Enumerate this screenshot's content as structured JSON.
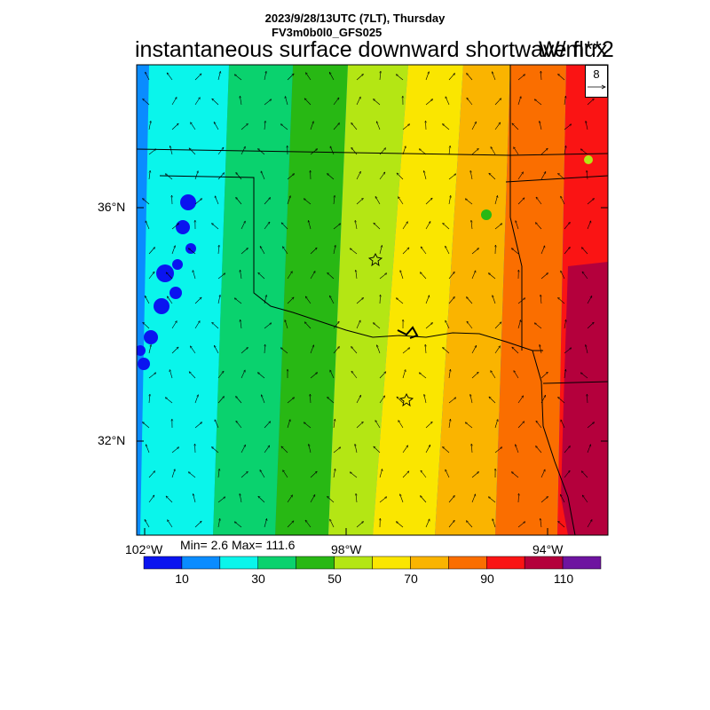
{
  "header": {
    "datetime": "2023/9/28/13UTC (7LT), Thursday",
    "model": "FV3m0b0l0_GFS025",
    "field": "instantaneous surface downward shortwave flux",
    "units": "W/m**2"
  },
  "axes": {
    "lat_labels": [
      "36°N",
      "32°N"
    ],
    "lon_labels": [
      "102°W",
      "98°W",
      "94°W"
    ]
  },
  "stats": {
    "text": "Min= 2.6 Max= 111.6"
  },
  "colorbar": {
    "colors": [
      "#0a14f0",
      "#0a8cff",
      "#0af5eb",
      "#0ad26e",
      "#28b814",
      "#b4e614",
      "#fae600",
      "#fab400",
      "#fa6e00",
      "#fa1414",
      "#b4003c",
      "#6e14a0"
    ],
    "tick_labels": [
      "10",
      "30",
      "50",
      "70",
      "90",
      "110"
    ]
  },
  "vector_reference": {
    "value": "8"
  },
  "map": {
    "style": "filled contours with wind vectors and state boundaries",
    "markers": [
      "star",
      "star"
    ]
  }
}
